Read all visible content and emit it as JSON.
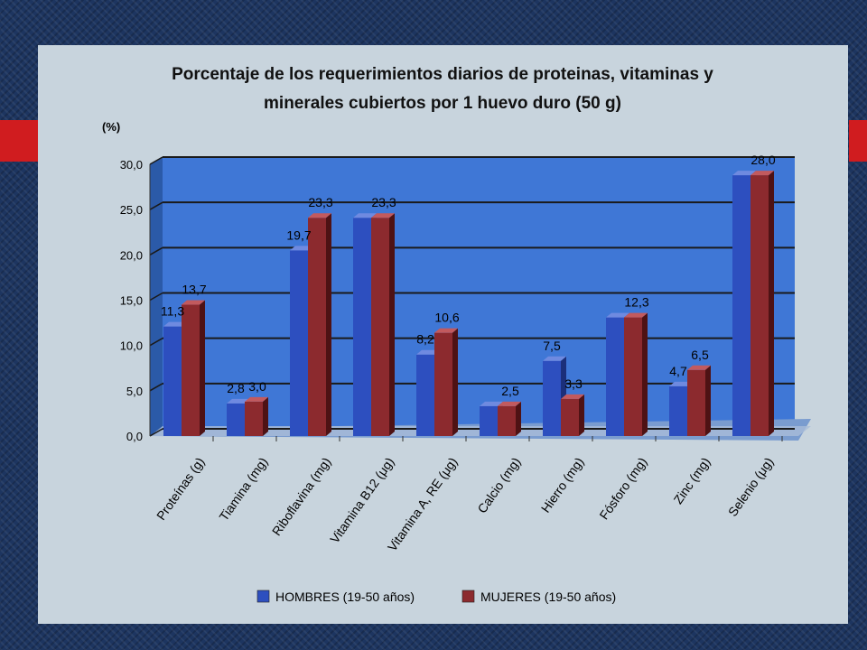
{
  "colors": {
    "hombres": "#2d4fbf",
    "mujeres": "#8c2a2e",
    "plot_bg": "#3f77d6",
    "panel": "#c8d4dd",
    "accent_red": "#d01c1f"
  },
  "chart_data": {
    "type": "bar",
    "title_lines": [
      "Porcentaje de los requerimientos diarios de proteinas, vitaminas y",
      "minerales cubiertos por 1 huevo duro (50 g)"
    ],
    "ylabel": "(%)",
    "ylim": [
      0,
      30
    ],
    "yticks": [
      "0,0",
      "5,0",
      "10,0",
      "15,0",
      "20,0",
      "25,0",
      "30,0"
    ],
    "grid": true,
    "legend_position": "bottom",
    "categories": [
      "Proteínas (g)",
      "Tiamina (mg)",
      "Riboflavina (mg)",
      "Vitamina B12 (μg)",
      "Vitamina A, RE (μg)",
      "Calcio (mg)",
      "Hierro (mg)",
      "Fósforo (mg)",
      "Zinc (mg)",
      "Selenio (μg)"
    ],
    "series": [
      {
        "name": "HOMBRES (19-50 años)",
        "values": [
          11.3,
          2.8,
          19.7,
          23.3,
          8.2,
          2.5,
          7.5,
          12.3,
          4.7,
          28.0
        ],
        "labels": [
          "11,3",
          "2,8",
          "19,7",
          "",
          "8,2",
          "",
          "7,5",
          "",
          "4,7",
          ""
        ]
      },
      {
        "name": "MUJERES (19-50 años)",
        "values": [
          13.7,
          3.0,
          23.3,
          23.3,
          10.6,
          2.5,
          3.3,
          12.3,
          6.5,
          28.0
        ],
        "labels": [
          "13,7",
          "3,0",
          "23,3",
          "23,3",
          "10,6",
          "2,5",
          "3,3",
          "12,3",
          "6,5",
          "28,0"
        ]
      }
    ]
  }
}
